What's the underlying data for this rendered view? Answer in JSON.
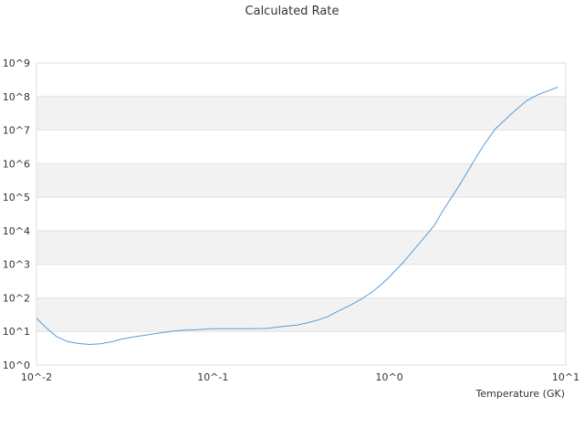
{
  "chart_data": {
    "type": "line",
    "title": "Calculated Rate",
    "xlabel": "Temperature (GK)",
    "ylabel": "",
    "x_scale": "log",
    "y_scale": "log",
    "xlim": [
      0.01,
      10
    ],
    "ylim": [
      1,
      1000000000
    ],
    "x_ticks": [
      "10^-2",
      "10^-1",
      "10^0",
      "10^1"
    ],
    "y_ticks": [
      "10^0",
      "10^1",
      "10^2",
      "10^3",
      "10^4",
      "10^5",
      "10^6",
      "10^7",
      "10^8",
      "10^9"
    ],
    "grid": "alternating horizontal bands",
    "line_color": "#5b9bd5",
    "band_color": "#f2f2f2",
    "series": [
      {
        "x": [
          0.01,
          0.011,
          0.012,
          0.013,
          0.015,
          0.017,
          0.02,
          0.023,
          0.027,
          0.03,
          0.035,
          0.04,
          0.05,
          0.06,
          0.07,
          0.08,
          0.1,
          0.12,
          0.15,
          0.2,
          0.25,
          0.3,
          0.35,
          0.4,
          0.45,
          0.5,
          0.6,
          0.7,
          0.8,
          0.9,
          1.0,
          1.2,
          1.5,
          1.8,
          2.0,
          2.5,
          3.0,
          3.5,
          4.0,
          5.0,
          6.0,
          7.0,
          8.0,
          9.0
        ],
        "y": [
          25,
          15,
          10,
          7,
          5,
          4.4,
          4.1,
          4.3,
          5,
          5.8,
          6.8,
          7.5,
          9,
          10.3,
          11,
          11.2,
          12,
          12,
          12,
          12.2,
          14,
          15.5,
          18.5,
          22.5,
          28,
          38,
          60,
          95,
          150,
          250,
          420,
          1150,
          4600,
          14500,
          38000,
          230000,
          1150000,
          4200000,
          11000000,
          33000000,
          75000000,
          115000000,
          150000000,
          190000000
        ]
      }
    ]
  }
}
